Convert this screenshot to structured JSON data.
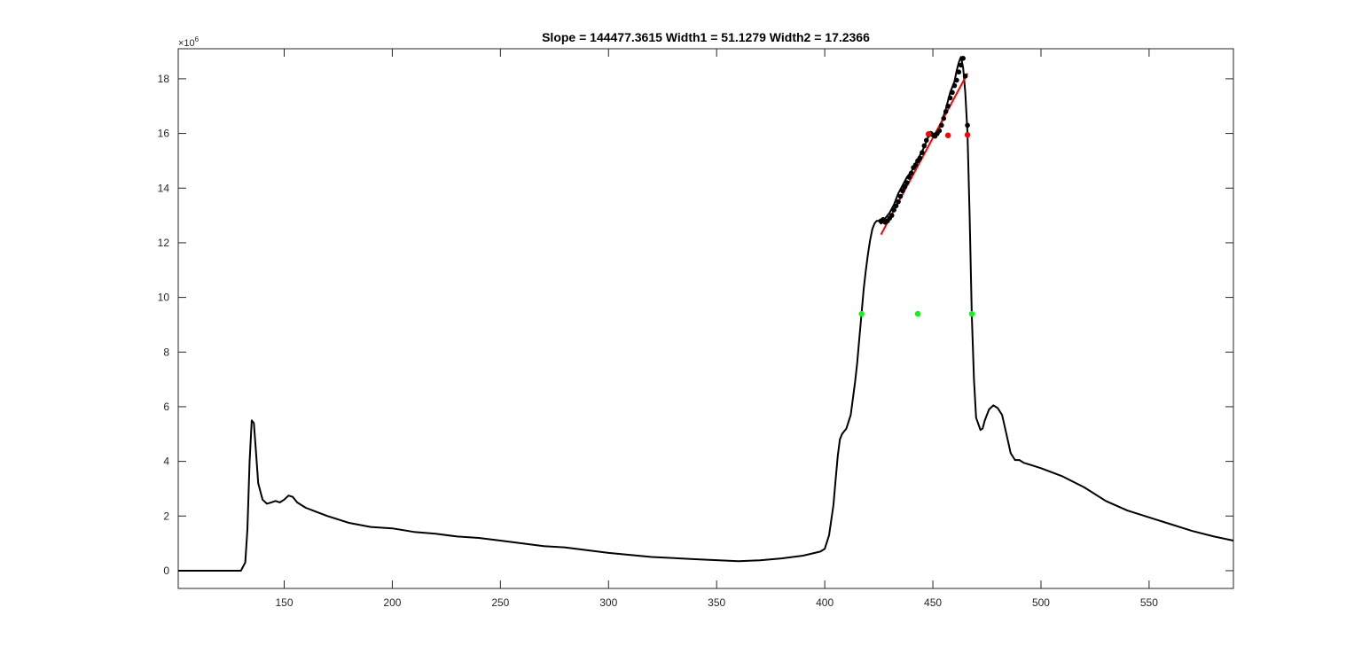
{
  "chart_data": {
    "type": "line",
    "title": "Slope = 144477.3615  Width1 = 51.1279  Width2 = 17.2366",
    "xlabel": "",
    "ylabel": "",
    "xlim": [
      101,
      589
    ],
    "ylim": [
      -0.65,
      19.1
    ],
    "y_exponent_label": "×10",
    "y_exponent_power": "6",
    "x_ticks": [
      150,
      200,
      250,
      300,
      350,
      400,
      450,
      500,
      550
    ],
    "y_ticks": [
      0,
      2,
      4,
      6,
      8,
      10,
      12,
      14,
      16,
      18
    ],
    "grid": false,
    "legend": "none",
    "colors": {
      "profile": "#000000",
      "fit": "#ff0000",
      "markers_black": "#000000",
      "markers_red": "#ff0000",
      "markers_green": "#00ff00",
      "axes": "#262626"
    },
    "series": [
      {
        "kind": "profile",
        "x": [
          101,
          130,
          132,
          133,
          134,
          135,
          136,
          137,
          138,
          140,
          142,
          144,
          146,
          148,
          150,
          152,
          154,
          156,
          158,
          160,
          165,
          170,
          180,
          190,
          200,
          210,
          220,
          230,
          240,
          250,
          260,
          270,
          280,
          300,
          320,
          340,
          360,
          370,
          380,
          390,
          398,
          400,
          402,
          404,
          405,
          406,
          407,
          408,
          410,
          412,
          414,
          415,
          416,
          417,
          418,
          419,
          420,
          421,
          422,
          423,
          424,
          425,
          426,
          427,
          428,
          430,
          432,
          434,
          436,
          438,
          440,
          442,
          444,
          446,
          448,
          450,
          452,
          454,
          456,
          458,
          460,
          461,
          462,
          463,
          464,
          465,
          466,
          467,
          468,
          469,
          470,
          472,
          473,
          474,
          476,
          478,
          480,
          482,
          484,
          486,
          488,
          490,
          492,
          496,
          500,
          510,
          520,
          530,
          540,
          550,
          560,
          570,
          580,
          589
        ],
        "y": [
          0,
          0,
          0.3,
          1.5,
          4.0,
          5.5,
          5.4,
          4.3,
          3.2,
          2.6,
          2.45,
          2.5,
          2.55,
          2.5,
          2.6,
          2.75,
          2.7,
          2.5,
          2.4,
          2.3,
          2.15,
          2.0,
          1.75,
          1.6,
          1.55,
          1.42,
          1.35,
          1.25,
          1.2,
          1.1,
          1.0,
          0.9,
          0.85,
          0.65,
          0.5,
          0.42,
          0.35,
          0.38,
          0.45,
          0.55,
          0.7,
          0.8,
          1.3,
          2.4,
          3.3,
          4.2,
          4.8,
          5.0,
          5.2,
          5.7,
          6.9,
          7.6,
          8.5,
          9.4,
          10.3,
          11.0,
          11.6,
          12.1,
          12.5,
          12.7,
          12.8,
          12.8,
          12.7,
          12.75,
          12.9,
          13.1,
          13.4,
          13.8,
          14.1,
          14.4,
          14.6,
          14.9,
          15.2,
          15.5,
          15.9,
          15.95,
          16.0,
          16.4,
          16.9,
          17.5,
          17.9,
          18.3,
          18.6,
          18.8,
          18.4,
          17.5,
          16.0,
          13.0,
          9.4,
          7.0,
          5.6,
          5.15,
          5.2,
          5.5,
          5.9,
          6.05,
          5.95,
          5.7,
          5.0,
          4.3,
          4.05,
          4.05,
          3.95,
          3.85,
          3.75,
          3.45,
          3.05,
          2.55,
          2.2,
          1.95,
          1.7,
          1.45,
          1.25,
          1.1
        ]
      },
      {
        "kind": "fit-line",
        "x": [
          426,
          466
        ],
        "y": [
          12.3,
          18.2
        ]
      },
      {
        "kind": "black-markers",
        "x": [
          426,
          427,
          428,
          429,
          430,
          431,
          432,
          433,
          434,
          435,
          436,
          437,
          438,
          439,
          440,
          441,
          442,
          443,
          444,
          445,
          446,
          447,
          448,
          449,
          450,
          451,
          452,
          453,
          454,
          455,
          456,
          457,
          458,
          459,
          460,
          461,
          462,
          463,
          464,
          465,
          466
        ],
        "y": [
          12.8,
          12.85,
          12.75,
          12.8,
          12.9,
          13.0,
          13.2,
          13.35,
          13.5,
          13.7,
          13.9,
          14.05,
          14.2,
          14.4,
          14.55,
          14.75,
          14.85,
          15.0,
          15.1,
          15.3,
          15.55,
          15.75,
          15.95,
          16.0,
          15.95,
          15.9,
          16.0,
          16.1,
          16.3,
          16.55,
          16.8,
          17.0,
          17.3,
          17.5,
          17.75,
          17.95,
          18.25,
          18.5,
          18.75,
          18.1,
          16.3
        ]
      },
      {
        "kind": "red-markers",
        "x": [
          448,
          457,
          466
        ],
        "y": [
          15.98,
          15.93,
          15.95
        ]
      },
      {
        "kind": "green-markers",
        "x": [
          417,
          443,
          468
        ],
        "y": [
          9.4,
          9.4,
          9.4
        ]
      }
    ]
  }
}
